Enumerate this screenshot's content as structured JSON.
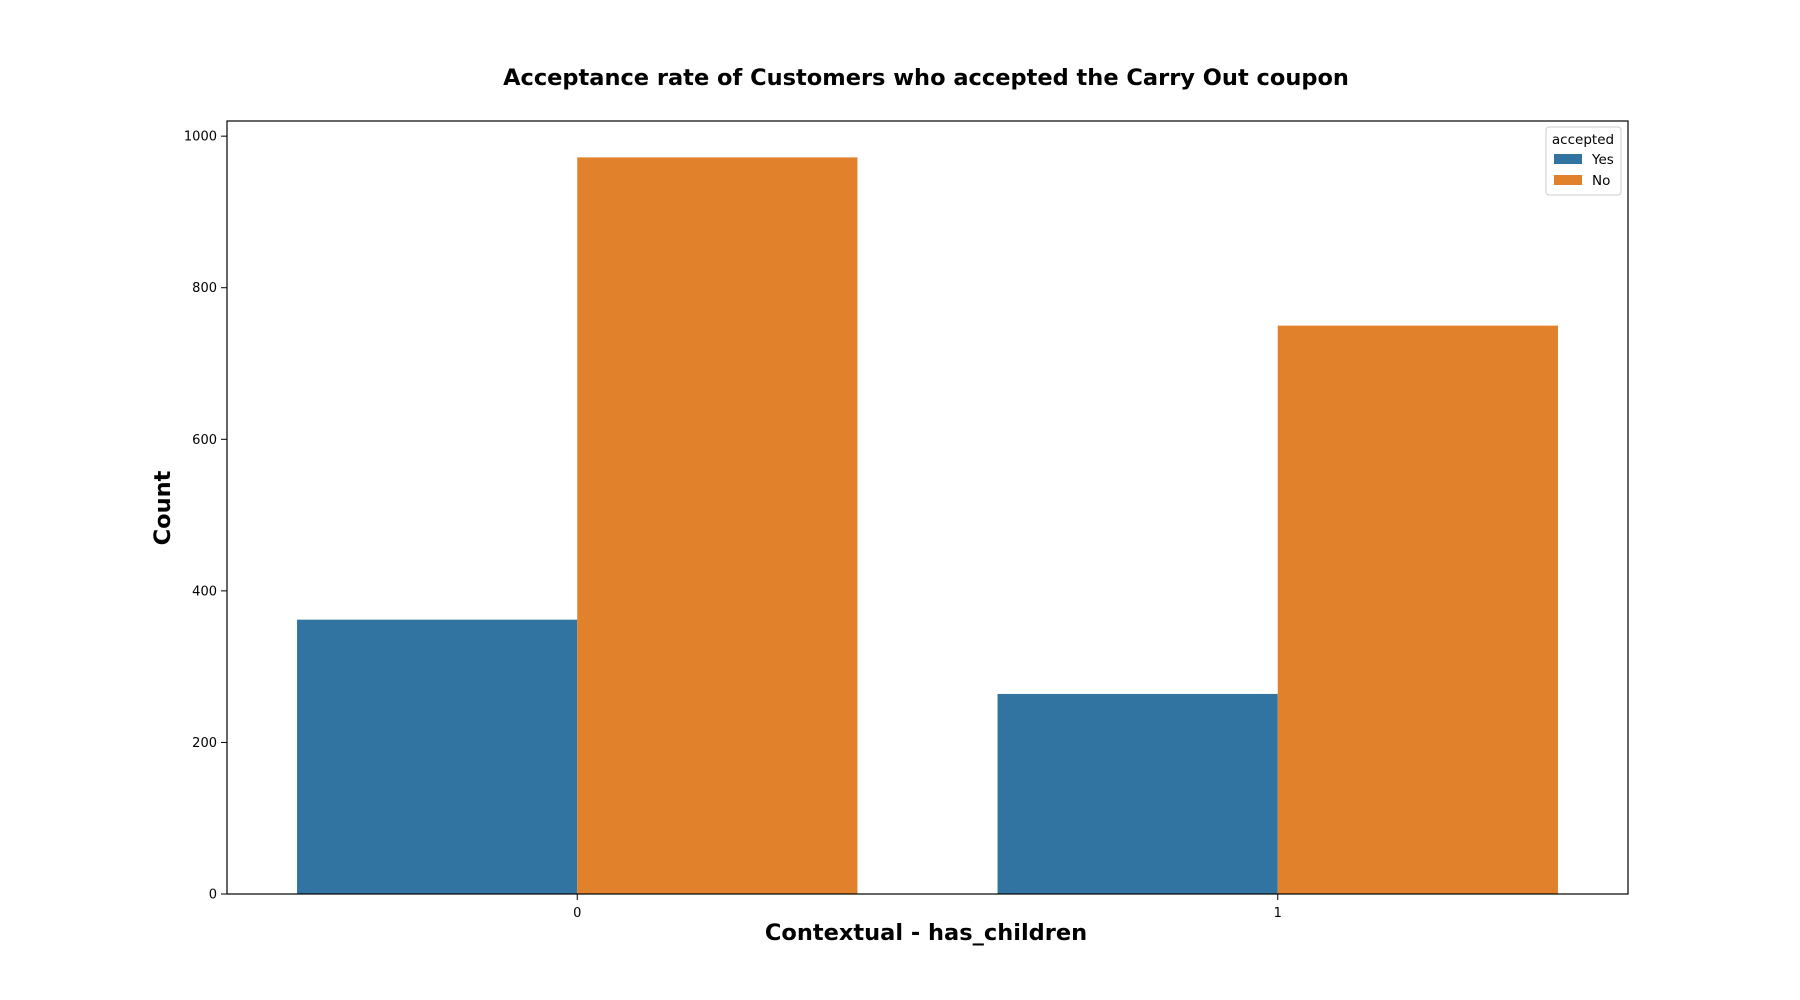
{
  "chart_data": {
    "type": "bar",
    "title": "Acceptance rate of Customers who accepted the Carry Out coupon",
    "xlabel": "Contextual - has_children",
    "ylabel": "Count",
    "categories": [
      "0",
      "1"
    ],
    "series": [
      {
        "name": "Yes",
        "values": [
          362,
          264
        ],
        "color": "#3274a1"
      },
      {
        "name": "No",
        "values": [
          972,
          750
        ],
        "color": "#e1812c"
      }
    ],
    "ylim": [
      0,
      1020
    ],
    "yticks": [
      0,
      200,
      400,
      600,
      800,
      1000
    ],
    "legend": {
      "title": "accepted",
      "placement": "top-right"
    },
    "grid": false
  }
}
